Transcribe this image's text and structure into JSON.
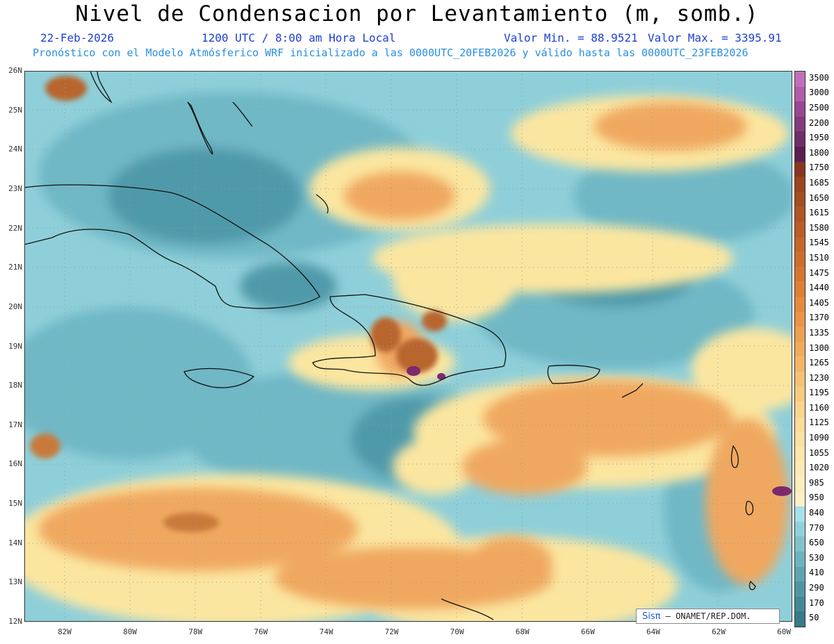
{
  "header": {
    "title": "Nivel de Condensacion por Levantamiento (m, somb.)",
    "date": "22-Feb-2026",
    "time": "1200 UTC / 8:00 am Hora Local",
    "min_label": "Valor Min. = 88.9521",
    "max_label": "Valor Max. = 3395.91",
    "info": "Pronóstico con el Modelo Atmósferico WRF inicializado a las 0000UTC_20FEB2026 y válido hasta las  0000UTC_23FEB2026"
  },
  "map": {
    "lat_labels": [
      "26N",
      "25N",
      "24N",
      "23N",
      "22N",
      "21N",
      "20N",
      "19N",
      "18N",
      "17N",
      "16N",
      "15N",
      "14N",
      "13N",
      "12N"
    ],
    "lon_labels": [
      "82W",
      "80W",
      "78W",
      "76W",
      "74W",
      "72W",
      "70W",
      "68W",
      "66W",
      "64W",
      "62W",
      "60W"
    ],
    "colors": {
      "sea_base": "#8fcfd9",
      "teal_dark": "#4f9aaa",
      "teal_mid": "#6fb8c6",
      "yellow": "#fbe6a0",
      "orange": "#f0a860",
      "brown": "#b8652d",
      "purple": "#7b2a6d",
      "coast": "#111111"
    }
  },
  "colorbar": {
    "labels": [
      "3500",
      "3000",
      "2500",
      "2200",
      "1950",
      "1800",
      "1750",
      "1685",
      "1650",
      "1615",
      "1580",
      "1545",
      "1510",
      "1475",
      "1440",
      "1405",
      "1370",
      "1335",
      "1300",
      "1265",
      "1230",
      "1195",
      "1160",
      "1125",
      "1090",
      "1055",
      "1020",
      "985",
      "950",
      "840",
      "770",
      "650",
      "530",
      "410",
      "290",
      "170",
      "50"
    ],
    "colors": [
      "#c26fb9",
      "#b35aa9",
      "#9a4793",
      "#833a7e",
      "#6e2e69",
      "#5a1f4e",
      "#8a3520",
      "#9c4420",
      "#a64d22",
      "#b05524",
      "#ba5d26",
      "#c46628",
      "#cc6e2c",
      "#d67630",
      "#de7f34",
      "#e48a3c",
      "#e99545",
      "#eda04f",
      "#f1ab5a",
      "#f4b666",
      "#f6c172",
      "#f8cb7f",
      "#f9d48c",
      "#fadb97",
      "#fbe1a2",
      "#fbe6ac",
      "#fbeab5",
      "#fcedbd",
      "#fdf0c6",
      "#a8e0e8",
      "#90d0da",
      "#7fc2cd",
      "#6db3c0",
      "#5da4b2",
      "#4f96a5",
      "#428997",
      "#367b8b"
    ]
  },
  "credit": {
    "logo": "Sisπ",
    "text": " – ONAMET/REP.DOM."
  }
}
